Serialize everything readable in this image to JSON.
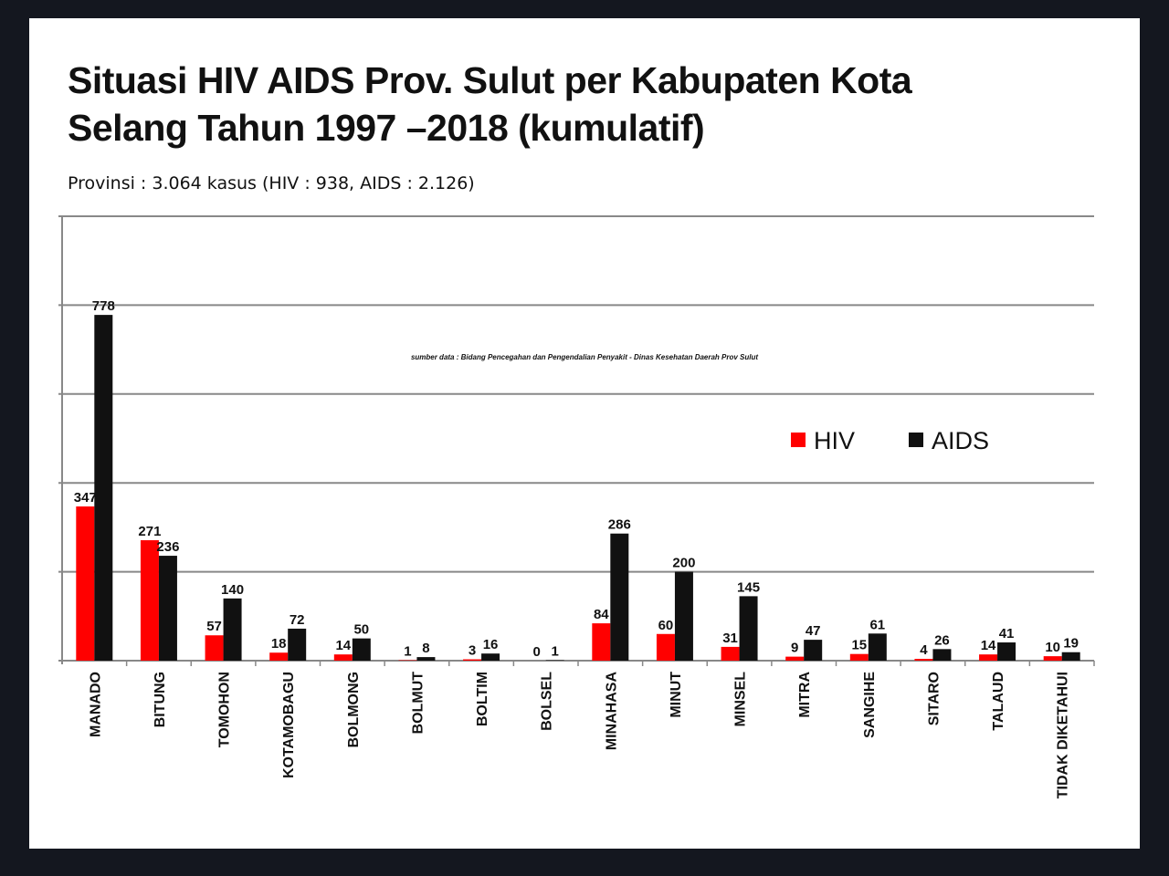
{
  "chart_data": {
    "type": "bar",
    "title": "Situasi HIV AIDS Prov. Sulut per Kabupaten Kota Selang Tahun 1997 –2018 (kumulatif)",
    "subtitle": "Provinsi : 3.064 kasus (HIV : 938, AIDS : 2.126)",
    "source_note": "sumber data : Bidang Pencegahan dan Pengendalian Penyakit - Dinas Kesehatan Daerah Prov Sulut",
    "categories": [
      "MANADO",
      "BITUNG",
      "TOMOHON",
      "KOTAMOBAGU",
      "BOLMONG",
      "BOLMUT",
      "BOLTIM",
      "BOLSEL",
      "MINAHASA",
      "MINUT",
      "MINSEL",
      "MITRA",
      "SANGIHE",
      "SITARO",
      "TALAUD",
      "TIDAK DIKETAHUI"
    ],
    "series": [
      {
        "name": "HIV",
        "color": "#ff0000",
        "values": [
          347,
          271,
          57,
          18,
          14,
          1,
          3,
          0,
          84,
          60,
          31,
          9,
          15,
          4,
          14,
          10
        ]
      },
      {
        "name": "AIDS",
        "color": "#111111",
        "values": [
          778,
          236,
          140,
          72,
          50,
          8,
          16,
          1,
          286,
          200,
          145,
          47,
          61,
          26,
          41,
          19
        ]
      }
    ],
    "ylim": [
      0,
      1000
    ],
    "y_ticks_labeled": false,
    "grid": true,
    "legend_position": "right"
  }
}
